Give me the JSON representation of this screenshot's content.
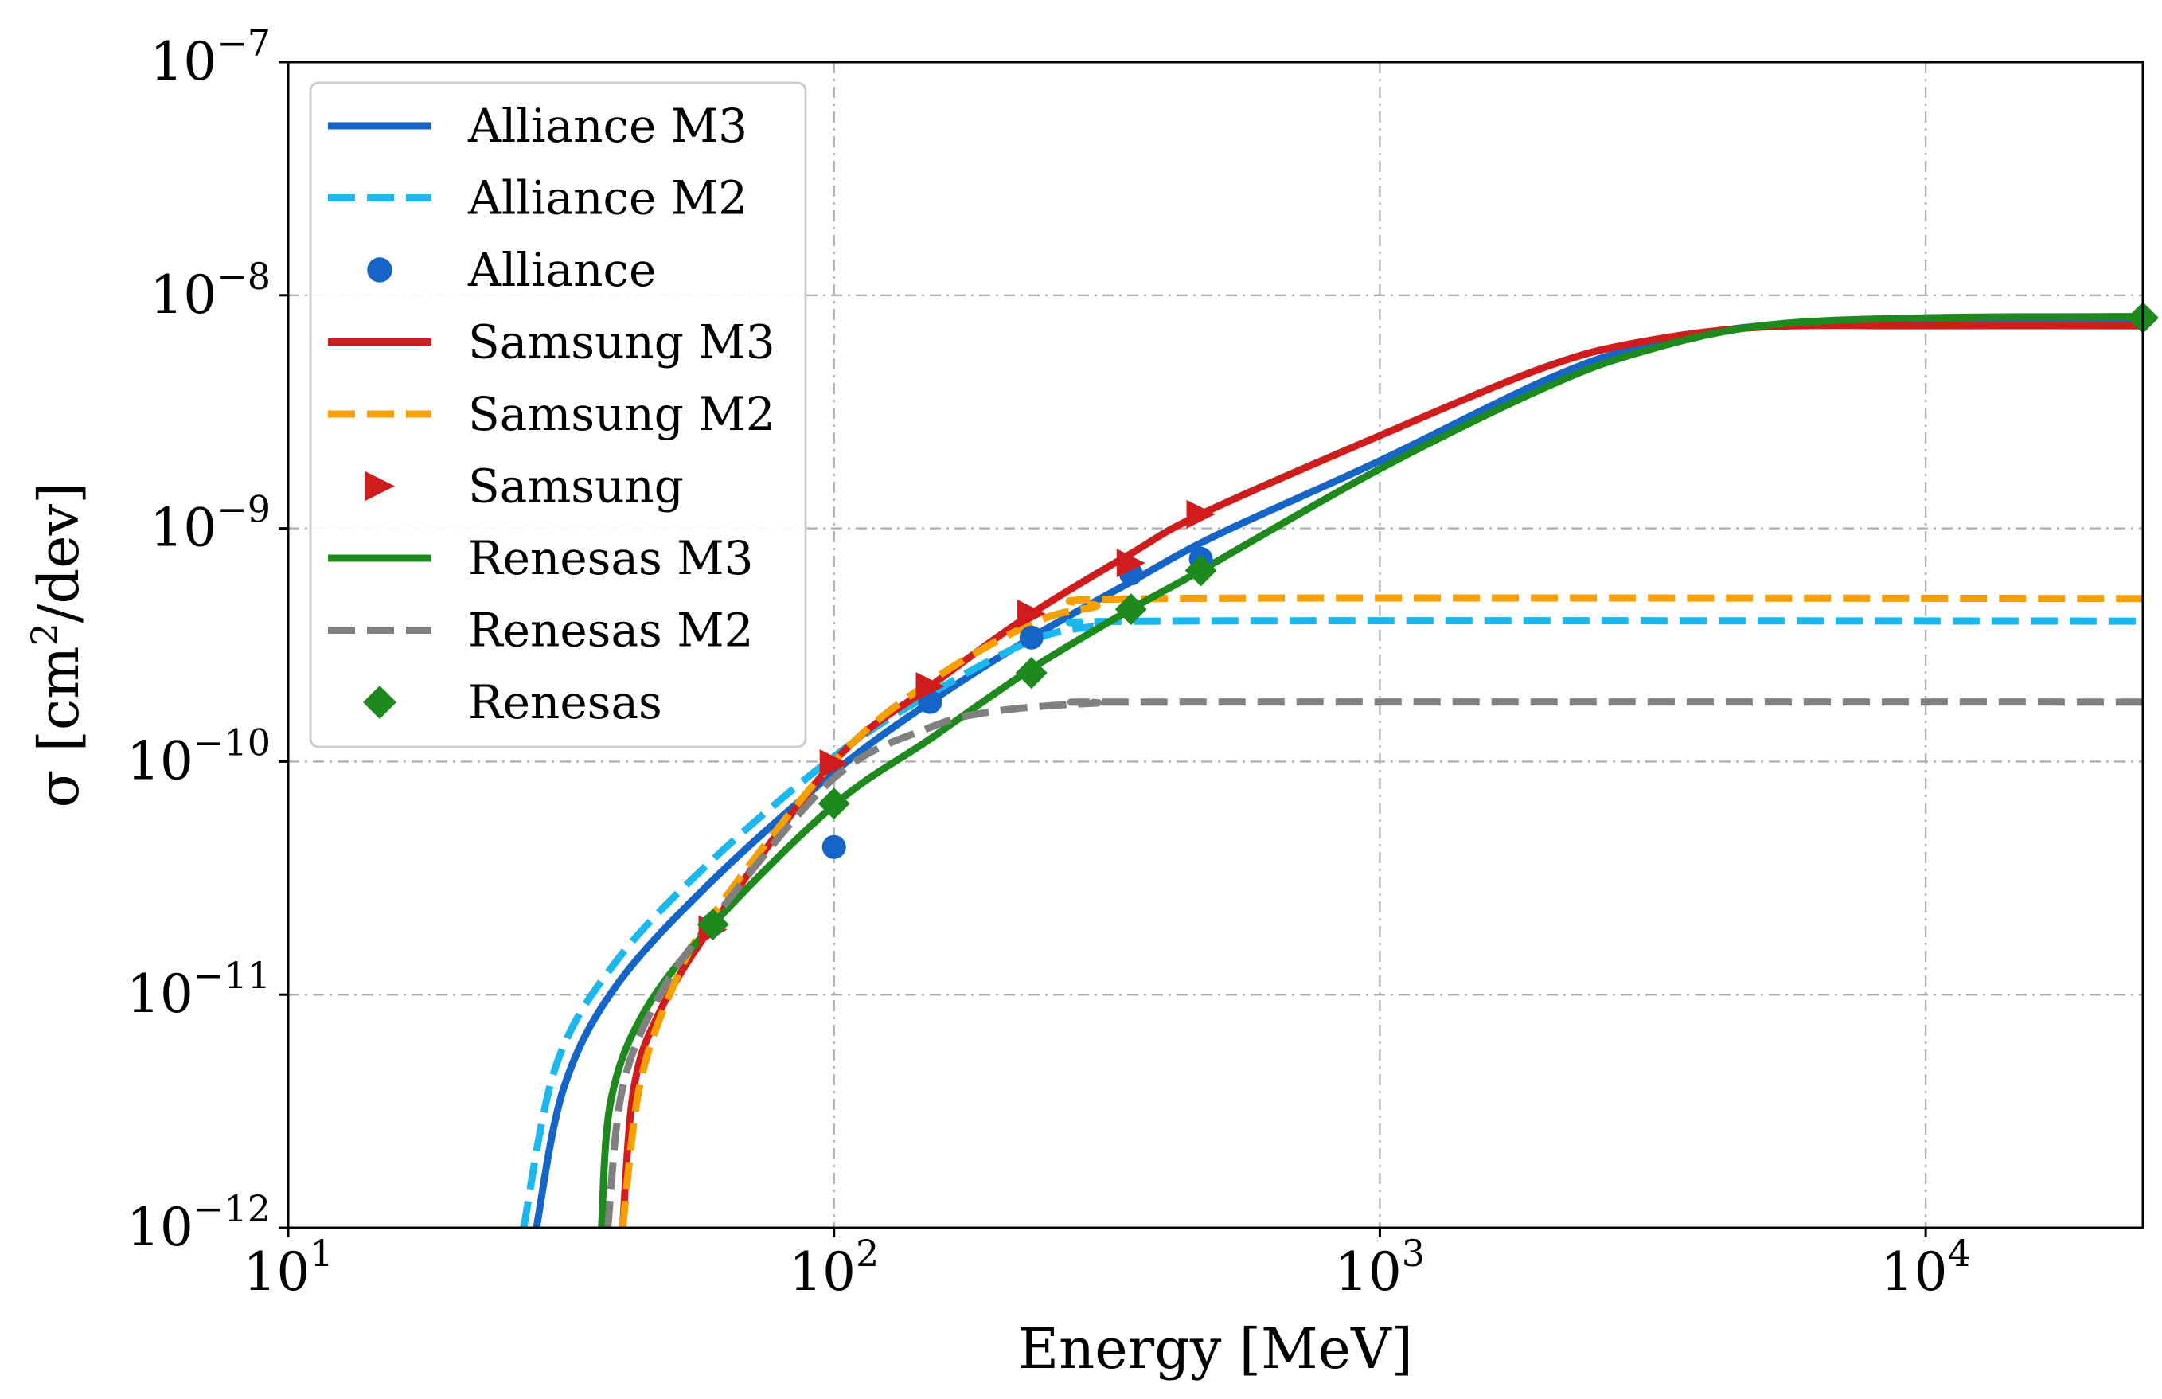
{
  "chart_data": {
    "type": "line",
    "title": "",
    "xlabel": "Energy [MeV]",
    "ylabel_parts": [
      "σ [cm",
      "2",
      "/dev]"
    ],
    "xscale": "log",
    "yscale": "log",
    "xlim": [
      10,
      25000
    ],
    "ylim": [
      1e-12,
      1e-07
    ],
    "grid": true,
    "legend_position": "upper-left",
    "x_ticks": [
      {
        "value": 10,
        "base": "10",
        "exp": "1"
      },
      {
        "value": 100,
        "base": "10",
        "exp": "2"
      },
      {
        "value": 1000,
        "base": "10",
        "exp": "3"
      },
      {
        "value": 10000,
        "base": "10",
        "exp": "4"
      }
    ],
    "y_ticks": [
      {
        "value": 1e-12,
        "base": "10",
        "exp": "−12"
      },
      {
        "value": 1e-11,
        "base": "10",
        "exp": "−11"
      },
      {
        "value": 1e-10,
        "base": "10",
        "exp": "−10"
      },
      {
        "value": 1e-09,
        "base": "10",
        "exp": "−9"
      },
      {
        "value": 1e-08,
        "base": "10",
        "exp": "−8"
      },
      {
        "value": 1e-07,
        "base": "10",
        "exp": "−7"
      }
    ],
    "curves": [
      {
        "name": "Alliance M3",
        "color": "#1565c8",
        "style": "solid",
        "points": [
          [
            28.5,
            1e-12
          ],
          [
            32,
            4e-12
          ],
          [
            40,
            1.1e-11
          ],
          [
            60,
            3.1e-11
          ],
          [
            100,
            9e-11
          ],
          [
            150,
            1.8e-10
          ],
          [
            230,
            3.4e-10
          ],
          [
            350,
            5.9e-10
          ],
          [
            500,
            9.3e-10
          ],
          [
            1000,
            1.95e-09
          ],
          [
            2000,
            4.3e-09
          ],
          [
            3000,
            6e-09
          ],
          [
            5000,
            7.4e-09
          ],
          [
            10000,
            7.8e-09
          ],
          [
            25000,
            7.8e-09
          ]
        ]
      },
      {
        "name": "Alliance M2",
        "color": "#1ab8ee",
        "style": "dashed",
        "points": [
          [
            27,
            1e-12
          ],
          [
            31,
            5e-12
          ],
          [
            40,
            1.4e-11
          ],
          [
            60,
            3.8e-11
          ],
          [
            100,
            1.05e-10
          ],
          [
            150,
            1.95e-10
          ],
          [
            230,
            3.3e-10
          ],
          [
            300,
            3.8e-10
          ],
          [
            400,
            4e-10
          ],
          [
            25000,
            4e-10
          ]
        ]
      },
      {
        "name": "Samsung M3",
        "color": "#d01c1c",
        "style": "solid",
        "points": [
          [
            41,
            1e-12
          ],
          [
            43,
            4e-12
          ],
          [
            48,
            8.5e-12
          ],
          [
            60,
            2e-11
          ],
          [
            100,
            1e-10
          ],
          [
            150,
            2.1e-10
          ],
          [
            230,
            4.3e-10
          ],
          [
            350,
            7.8e-10
          ],
          [
            470,
            1.15e-09
          ],
          [
            1000,
            2.5e-09
          ],
          [
            2000,
            4.9e-09
          ],
          [
            3000,
            6.3e-09
          ],
          [
            5000,
            7.3e-09
          ],
          [
            10000,
            7.4e-09
          ],
          [
            25000,
            7.4e-09
          ]
        ]
      },
      {
        "name": "Samsung M2",
        "color": "#f5a000",
        "style": "dashed",
        "points": [
          [
            41,
            1e-12
          ],
          [
            44,
            4e-12
          ],
          [
            50,
            1e-11
          ],
          [
            60,
            2.2e-11
          ],
          [
            100,
            1e-10
          ],
          [
            150,
            2.2e-10
          ],
          [
            230,
            3.9e-10
          ],
          [
            300,
            4.6e-10
          ],
          [
            400,
            5e-10
          ],
          [
            25000,
            5e-10
          ]
        ]
      },
      {
        "name": "Renesas M3",
        "color": "#1e8a1e",
        "style": "solid",
        "points": [
          [
            37.5,
            1e-12
          ],
          [
            39,
            3.5e-12
          ],
          [
            45,
            8.5e-12
          ],
          [
            60,
            2e-11
          ],
          [
            100,
            6.5e-11
          ],
          [
            150,
            1.25e-10
          ],
          [
            230,
            2.5e-10
          ],
          [
            350,
            4.5e-10
          ],
          [
            470,
            6.6e-10
          ],
          [
            1000,
            1.8e-09
          ],
          [
            2000,
            4e-09
          ],
          [
            3000,
            5.7e-09
          ],
          [
            5000,
            7.4e-09
          ],
          [
            10000,
            8e-09
          ],
          [
            25000,
            8.1e-09
          ]
        ]
      },
      {
        "name": "Renesas M2",
        "color": "#808080",
        "style": "dashed",
        "points": [
          [
            38.5,
            1e-12
          ],
          [
            41,
            4e-12
          ],
          [
            48,
            1e-11
          ],
          [
            60,
            2.1e-11
          ],
          [
            100,
            8.5e-11
          ],
          [
            150,
            1.4e-10
          ],
          [
            200,
            1.65e-10
          ],
          [
            300,
            1.78e-10
          ],
          [
            400,
            1.8e-10
          ],
          [
            25000,
            1.8e-10
          ]
        ]
      }
    ],
    "scatter": [
      {
        "name": "Alliance",
        "color": "#1565c8",
        "marker": "circle",
        "points": [
          [
            60,
            2e-11
          ],
          [
            100,
            4.3e-11
          ],
          [
            150,
            1.8e-10
          ],
          [
            230,
            3.4e-10
          ],
          [
            350,
            6.4e-10
          ],
          [
            470,
            7.4e-10
          ]
        ]
      },
      {
        "name": "Samsung",
        "color": "#d01c1c",
        "marker": "triangle-right",
        "points": [
          [
            60,
            1.9e-11
          ],
          [
            100,
            9.8e-11
          ],
          [
            150,
            2.1e-10
          ],
          [
            230,
            4.3e-10
          ],
          [
            350,
            7.1e-10
          ],
          [
            470,
            1.15e-09
          ]
        ]
      },
      {
        "name": "Renesas",
        "color": "#1e8a1e",
        "marker": "diamond",
        "points": [
          [
            60,
            2e-11
          ],
          [
            100,
            6.6e-11
          ],
          [
            230,
            2.4e-10
          ],
          [
            350,
            4.5e-10
          ],
          [
            470,
            6.6e-10
          ],
          [
            25000,
            8e-09
          ]
        ]
      }
    ],
    "legend": [
      {
        "label": "Alliance M3",
        "color": "#1565c8",
        "kind": "line-solid"
      },
      {
        "label": "Alliance M2",
        "color": "#1ab8ee",
        "kind": "line-dashed"
      },
      {
        "label": "Alliance",
        "color": "#1565c8",
        "kind": "circle"
      },
      {
        "label": "Samsung M3",
        "color": "#d01c1c",
        "kind": "line-solid"
      },
      {
        "label": "Samsung M2",
        "color": "#f5a000",
        "kind": "line-dashed"
      },
      {
        "label": "Samsung",
        "color": "#d01c1c",
        "kind": "triangle-right"
      },
      {
        "label": "Renesas M3",
        "color": "#1e8a1e",
        "kind": "line-solid"
      },
      {
        "label": "Renesas M2",
        "color": "#808080",
        "kind": "line-dashed"
      },
      {
        "label": "Renesas",
        "color": "#1e8a1e",
        "kind": "diamond"
      }
    ]
  }
}
